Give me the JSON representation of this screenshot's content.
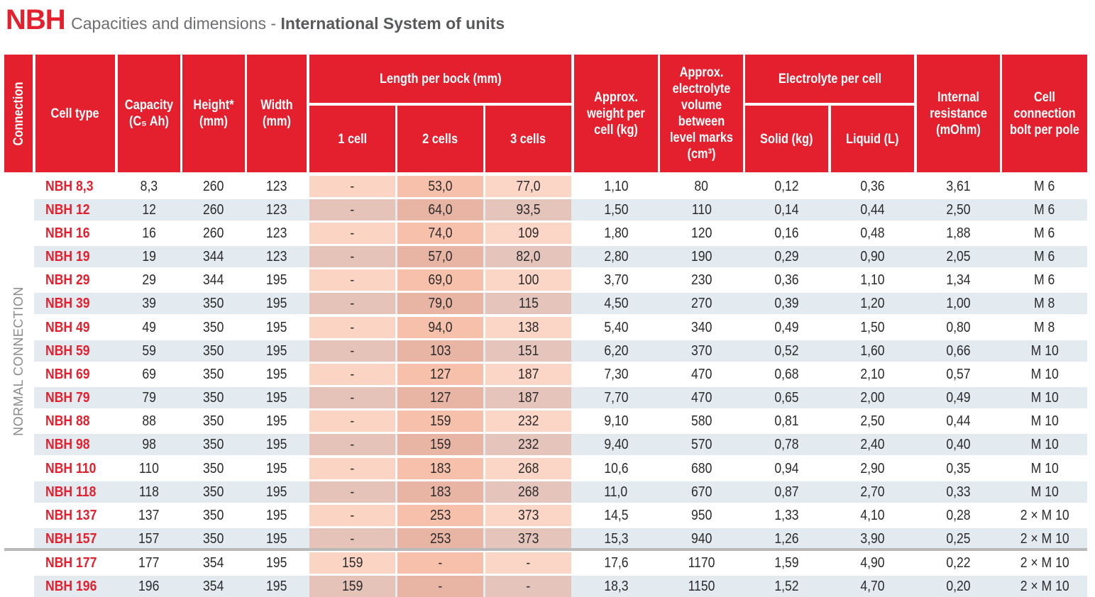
{
  "title": {
    "brand": "NBH",
    "subtitle_prefix": "Capacities and dimensions - ",
    "subtitle_bold": "International System of units"
  },
  "headers": {
    "connection": "Connection",
    "cell_type": "Cell type",
    "capacity": "Capacity (C₅ Ah)",
    "height": "Height* (mm)",
    "width": "Width (mm)",
    "length_group": "Length per bock (mm)",
    "len_1": "1 cell",
    "len_2": "2 cells",
    "len_3": "3 cells",
    "weight": "Approx. weight per cell (kg)",
    "electrolyte_volume": "Approx. electrolyte volume between level marks (cm³)",
    "electrolyte_group": "Electrolyte per cell",
    "solid": "Solid (kg)",
    "liquid": "Liquid (L)",
    "resistance": "Internal resistance (mOhm)",
    "bolt": "Cell connection bolt per pole"
  },
  "side_label": "NORMAL CONNECTION",
  "colors": {
    "brand_red": "#e5202e",
    "stripe_light": "#ffffff",
    "stripe_blue": "#e3eaf0",
    "len1_light": "#fbd4c3",
    "len1_dark": "#e6c3b9",
    "len2_light": "#f6c0aa",
    "len2_dark": "#e8b4a3",
    "len3_light": "#fbd5c5",
    "len3_dark": "#e4c4bb",
    "separator": "#b9b9b9"
  },
  "rows": [
    [
      "NBH 8,3",
      "8,3",
      "260",
      "123",
      "-",
      "53,0",
      "77,0",
      "1,10",
      "80",
      "0,12",
      "0,36",
      "3,61",
      "M 6"
    ],
    [
      "NBH 12",
      "12",
      "260",
      "123",
      "-",
      "64,0",
      "93,5",
      "1,50",
      "110",
      "0,14",
      "0,44",
      "2,50",
      "M 6"
    ],
    [
      "NBH 16",
      "16",
      "260",
      "123",
      "-",
      "74,0",
      "109",
      "1,80",
      "120",
      "0,16",
      "0,48",
      "1,88",
      "M 6"
    ],
    [
      "NBH 19",
      "19",
      "344",
      "123",
      "-",
      "57,0",
      "82,0",
      "2,80",
      "190",
      "0,29",
      "0,90",
      "2,05",
      "M 6"
    ],
    [
      "NBH 29",
      "29",
      "344",
      "195",
      "-",
      "69,0",
      "100",
      "3,70",
      "230",
      "0,36",
      "1,10",
      "1,34",
      "M 6"
    ],
    [
      "NBH 39",
      "39",
      "350",
      "195",
      "-",
      "79,0",
      "115",
      "4,50",
      "270",
      "0,39",
      "1,20",
      "1,00",
      "M 8"
    ],
    [
      "NBH 49",
      "49",
      "350",
      "195",
      "-",
      "94,0",
      "138",
      "5,40",
      "340",
      "0,49",
      "1,50",
      "0,80",
      "M 8"
    ],
    [
      "NBH 59",
      "59",
      "350",
      "195",
      "-",
      "103",
      "151",
      "6,20",
      "370",
      "0,52",
      "1,60",
      "0,66",
      "M 10"
    ],
    [
      "NBH 69",
      "69",
      "350",
      "195",
      "-",
      "127",
      "187",
      "7,30",
      "470",
      "0,68",
      "2,10",
      "0,57",
      "M 10"
    ],
    [
      "NBH 79",
      "79",
      "350",
      "195",
      "-",
      "127",
      "187",
      "7,70",
      "470",
      "0,65",
      "2,00",
      "0,49",
      "M 10"
    ],
    [
      "NBH 88",
      "88",
      "350",
      "195",
      "-",
      "159",
      "232",
      "9,10",
      "580",
      "0,81",
      "2,50",
      "0,44",
      "M 10"
    ],
    [
      "NBH 98",
      "98",
      "350",
      "195",
      "-",
      "159",
      "232",
      "9,40",
      "570",
      "0,78",
      "2,40",
      "0,40",
      "M 10"
    ],
    [
      "NBH 110",
      "110",
      "350",
      "195",
      "-",
      "183",
      "268",
      "10,6",
      "680",
      "0,94",
      "2,90",
      "0,35",
      "M 10"
    ],
    [
      "NBH 118",
      "118",
      "350",
      "195",
      "-",
      "183",
      "268",
      "11,0",
      "670",
      "0,87",
      "2,70",
      "0,33",
      "M 10"
    ],
    [
      "NBH 137",
      "137",
      "350",
      "195",
      "-",
      "253",
      "373",
      "14,5",
      "950",
      "1,33",
      "4,10",
      "0,28",
      "2 × M 10"
    ],
    [
      "NBH 157",
      "157",
      "350",
      "195",
      "-",
      "253",
      "373",
      "15,3",
      "940",
      "1,26",
      "3,90",
      "0,25",
      "2 × M 10"
    ],
    [
      "NBH 177",
      "177",
      "354",
      "195",
      "159",
      "-",
      "-",
      "17,6",
      "1170",
      "1,59",
      "4,90",
      "0,22",
      "2 × M 10"
    ],
    [
      "NBH 196",
      "196",
      "354",
      "195",
      "159",
      "-",
      "-",
      "18,3",
      "1150",
      "1,52",
      "4,70",
      "0,20",
      "2 × M 10"
    ]
  ]
}
